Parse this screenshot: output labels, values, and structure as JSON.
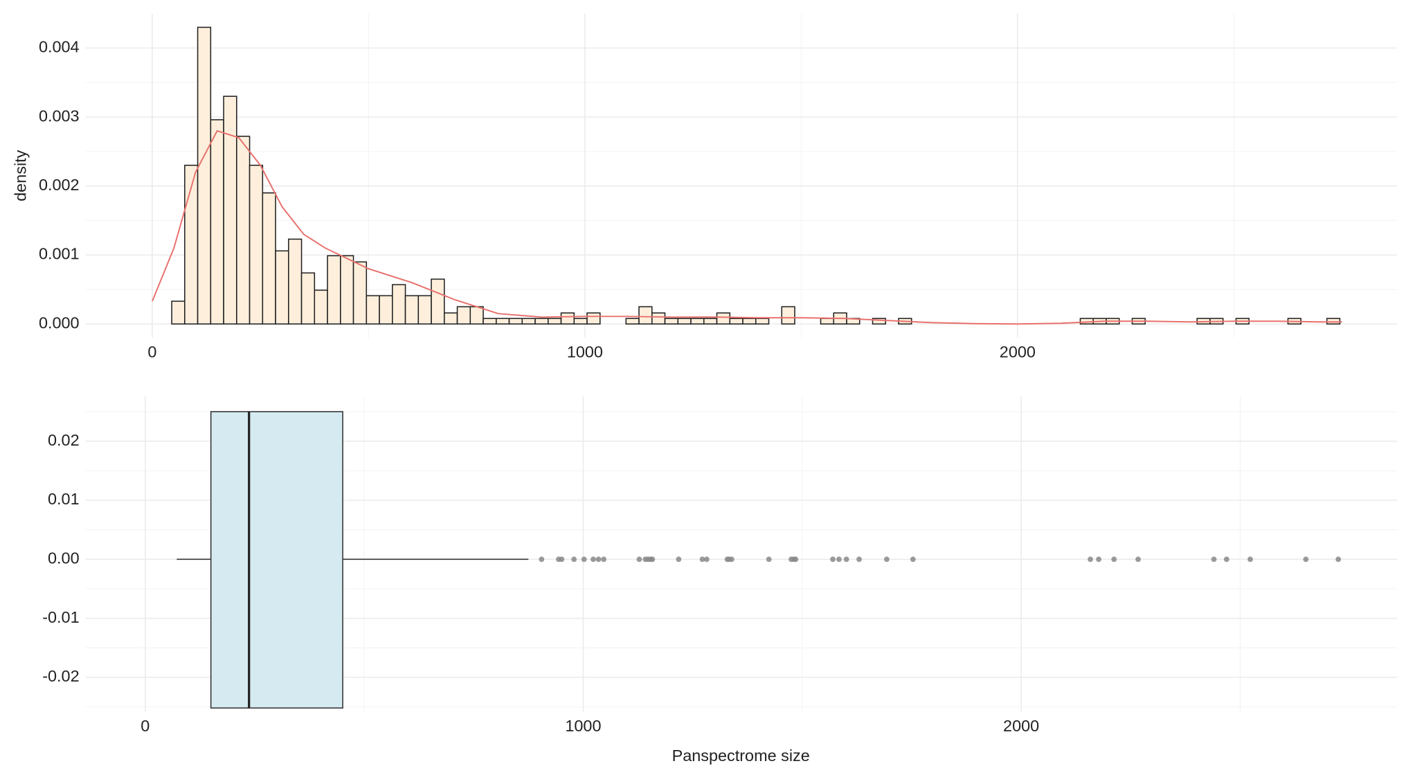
{
  "chart_data": [
    {
      "type": "histogram",
      "ylabel": "density",
      "bins": [
        45,
        75,
        105,
        135,
        165,
        195,
        225,
        255,
        285,
        315,
        345,
        375,
        405,
        435,
        465,
        495,
        525,
        555,
        585,
        615,
        645,
        675,
        705,
        735,
        765,
        795,
        825,
        855,
        885,
        915,
        945,
        975,
        1005,
        1035,
        1065,
        1095,
        1125,
        1155,
        1185,
        1215,
        1245,
        1275,
        1305,
        1335,
        1365,
        1395,
        1425,
        1455,
        1485,
        1515,
        1545,
        1575,
        1605,
        1635,
        1665,
        1695,
        1725,
        1755,
        1785,
        1815,
        1845,
        1875,
        1905,
        1935,
        1965,
        1995,
        2025,
        2055,
        2085,
        2115,
        2145,
        2175,
        2205,
        2235,
        2265,
        2295,
        2325,
        2355,
        2385,
        2415,
        2445,
        2475,
        2505,
        2535,
        2565,
        2595,
        2625,
        2655,
        2685,
        2715,
        2745
      ],
      "values": [
        0.00033,
        0.0023,
        0.0043,
        0.00296,
        0.0033,
        0.00272,
        0.0023,
        0.0019,
        0.00106,
        0.00123,
        0.00074,
        0.00049,
        0.00099,
        0.00099,
        0.0009,
        0.00041,
        0.00041,
        0.00057,
        0.00041,
        0.00041,
        0.00065,
        0.00016,
        0.00025,
        0.00025,
        8e-05,
        8e-05,
        8e-05,
        8e-05,
        8e-05,
        8e-05,
        0.00016,
        8e-05,
        0.00016,
        0,
        0,
        8e-05,
        0.00025,
        0.00016,
        8e-05,
        8e-05,
        8e-05,
        8e-05,
        0.00016,
        8e-05,
        8e-05,
        8e-05,
        0,
        0.00025,
        0,
        0,
        8e-05,
        0.00016,
        8e-05,
        0,
        8e-05,
        0,
        8e-05,
        0,
        0,
        0,
        0,
        0,
        0,
        0,
        0,
        0,
        0,
        0,
        0,
        0,
        8e-05,
        8e-05,
        8e-05,
        0,
        8e-05,
        0,
        0,
        0,
        0,
        8e-05,
        8e-05,
        0,
        8e-05,
        0,
        0,
        0,
        8e-05,
        0,
        0,
        8e-05
      ],
      "color": "#fdefdc",
      "edge_color": "#222222",
      "curve": {
        "color": "#e8706c",
        "x": [
          0,
          50,
          100,
          150,
          200,
          250,
          300,
          350,
          400,
          450,
          500,
          600,
          700,
          800,
          900,
          1000,
          1100,
          1200,
          1300,
          1400,
          1500,
          1600,
          1700,
          1800,
          1900,
          2000,
          2100,
          2200,
          2300,
          2400,
          2500,
          2600,
          2700,
          2750
        ],
        "y": [
          0.00033,
          0.0011,
          0.0022,
          0.0028,
          0.0027,
          0.0023,
          0.0017,
          0.0013,
          0.0011,
          0.00095,
          0.0008,
          0.0006,
          0.00035,
          0.00015,
          0.0001,
          0.00011,
          0.00011,
          0.0001,
          0.0001,
          9e-05,
          9e-05,
          8e-05,
          5e-05,
          2e-05,
          5e-06,
          0,
          1e-05,
          4e-05,
          4e-05,
          3e-05,
          4e-05,
          4e-05,
          3e-05,
          3e-05
        ]
      },
      "xlim": [
        -154,
        2877
      ],
      "xticks": [
        0,
        1000,
        2000
      ],
      "ylim": [
        -0.0002,
        0.0045
      ],
      "yticks": [
        {
          "value": 0,
          "label": "0.000"
        },
        0.001,
        0.002,
        0.003,
        0.004
      ],
      "grid": true
    },
    {
      "type": "box",
      "xlabel": "Panspectrome size",
      "whisker_low": 72,
      "q1": 150,
      "median": 237,
      "q3": 451,
      "whisker_high": 875,
      "outliers": [
        905,
        944,
        951,
        979,
        1002,
        1023,
        1035,
        1047,
        1128,
        1142,
        1148,
        1154,
        1158,
        1218,
        1272,
        1282,
        1329,
        1333,
        1339,
        1424,
        1475,
        1481,
        1485,
        1570,
        1584,
        1601,
        1630,
        1693,
        1753,
        2158,
        2177,
        2212,
        2267,
        2440,
        2469,
        2523,
        2650,
        2724
      ],
      "color": "#d6eaf2",
      "edge_color": "#333333",
      "outlier_color": "#888888",
      "xlim": [
        -136,
        2858
      ],
      "xticks": [
        0,
        1000,
        2000
      ],
      "ylim": [
        -0.0258,
        0.0276
      ],
      "yticks": [
        -0.02,
        -0.01,
        {
          "value": 0,
          "label": "0.00"
        },
        0.01,
        0.02
      ],
      "grid": true
    }
  ]
}
